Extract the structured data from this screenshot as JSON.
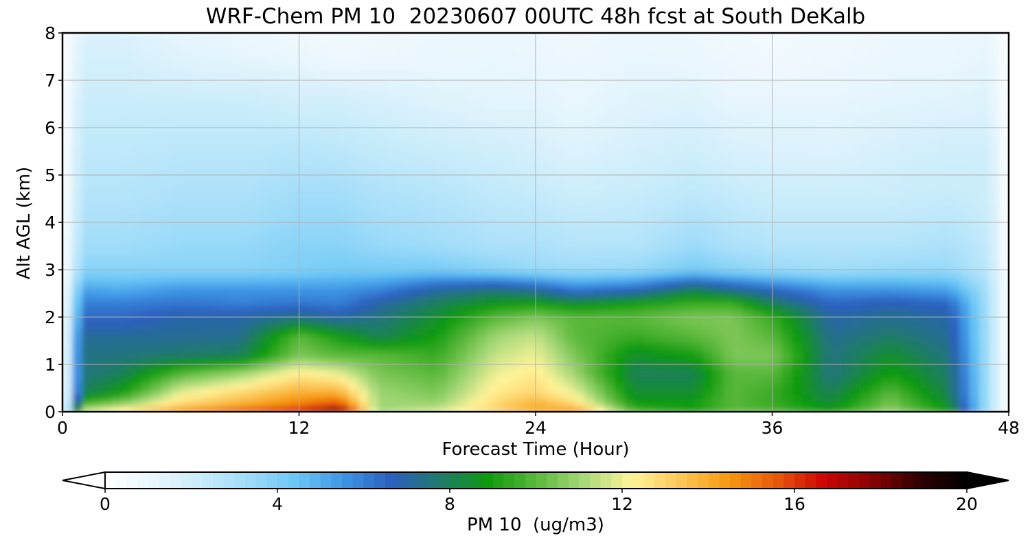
{
  "chart_data": {
    "type": "heatmap",
    "title": "WRF-Chem PM 10  20230607 00UTC 48h fcst at South DeKalb",
    "xlabel": "Forecast Time (Hour)",
    "ylabel": "Alt AGL (km)",
    "xlim": [
      0,
      48
    ],
    "ylim": [
      0,
      8
    ],
    "x_ticks": [
      "0",
      "12",
      "24",
      "36",
      "48"
    ],
    "y_ticks": [
      "0",
      "1",
      "2",
      "3",
      "4",
      "5",
      "6",
      "7",
      "8"
    ],
    "grid": true,
    "colorbar": {
      "label": "PM 10  (ug/m3)",
      "range": [
        0,
        20
      ],
      "ticks": [
        "0",
        "4",
        "8",
        "12",
        "16",
        "20"
      ],
      "colors": [
        "#ffffff",
        "#e8f6fd",
        "#c9ecfb",
        "#9fdcf9",
        "#69c6f6",
        "#3d95e4",
        "#2c5fbf",
        "#1f7a6a",
        "#0e9a0e",
        "#5ab83a",
        "#a8d97a",
        "#fff49a",
        "#fcc85a",
        "#f79a10",
        "#e85a0a",
        "#cc0505",
        "#8a0202",
        "#300000",
        "#000000"
      ],
      "extend": "both"
    },
    "x": [
      0,
      1,
      3,
      6,
      9,
      12,
      14,
      16,
      19,
      22,
      24,
      26,
      29,
      32,
      34,
      36,
      39,
      42,
      45,
      47,
      48
    ],
    "y": [
      0,
      0.15,
      0.4,
      0.8,
      1.2,
      1.6,
      2.0,
      2.3,
      2.6,
      3.0,
      3.5,
      4.5,
      5.5,
      6.5,
      7.5,
      8.0
    ],
    "z": [
      [
        0,
        12,
        13,
        15,
        16,
        17,
        19,
        11,
        12,
        13,
        14,
        15,
        10,
        9,
        10,
        10,
        9,
        11,
        9,
        3,
        0
      ],
      [
        0,
        10,
        11,
        13,
        14,
        15,
        16,
        11,
        11,
        13,
        14,
        13,
        9,
        9,
        10,
        9.5,
        8.5,
        10.5,
        8.5,
        3,
        0
      ],
      [
        0,
        8,
        9,
        12,
        13,
        14,
        14,
        11,
        10.5,
        12.5,
        13,
        12,
        8.5,
        8.5,
        10,
        9.5,
        8,
        10,
        8,
        3,
        0
      ],
      [
        0,
        7.5,
        8,
        10,
        11,
        12.5,
        12,
        10.5,
        10,
        12,
        12.5,
        11,
        8,
        8,
        10,
        10,
        7.5,
        9,
        7.8,
        3,
        0
      ],
      [
        0,
        7.5,
        7.5,
        7.8,
        8,
        10.5,
        10,
        10,
        9.5,
        11.5,
        12,
        10.5,
        8.5,
        9,
        10.5,
        10.5,
        7.5,
        8.5,
        7.5,
        3,
        0
      ],
      [
        0,
        7.2,
        7.2,
        7.2,
        7.3,
        10,
        9,
        8,
        9,
        11,
        11.5,
        10,
        9.5,
        10,
        10.5,
        10,
        7.3,
        7.8,
        7.2,
        3,
        0
      ],
      [
        0,
        6.5,
        6.5,
        7,
        7,
        7.5,
        7,
        7.5,
        8.5,
        10,
        10.5,
        10,
        10,
        10.5,
        10.5,
        9.5,
        7,
        7.3,
        7,
        3,
        0
      ],
      [
        0,
        6,
        6,
        6.2,
        6,
        6.2,
        6,
        7,
        8,
        8.8,
        9,
        8.5,
        9,
        9.5,
        9.5,
        8,
        6.5,
        6.8,
        6.5,
        3,
        0
      ],
      [
        0,
        5.2,
        5,
        5.5,
        5.5,
        5.5,
        5.5,
        5.8,
        7,
        7.5,
        7,
        6,
        6.5,
        8,
        7.2,
        6.5,
        5.5,
        5.5,
        5.2,
        3,
        0
      ],
      [
        0,
        3.8,
        3.8,
        3.8,
        3.8,
        4,
        4.2,
        4.2,
        4.2,
        3.8,
        3.5,
        3.4,
        3.5,
        4.2,
        3.8,
        3.5,
        3.3,
        3.5,
        3.5,
        2.5,
        0
      ],
      [
        0,
        3.3,
        3.3,
        3.5,
        3.5,
        3.8,
        3.8,
        3.5,
        3.3,
        3,
        3,
        2.8,
        2.8,
        3.4,
        3,
        2.8,
        2.8,
        2.8,
        3,
        2.4,
        0
      ],
      [
        0,
        2.8,
        2.8,
        3,
        3,
        3.3,
        3.3,
        3,
        2.8,
        2.5,
        2.4,
        2.2,
        2.3,
        2.6,
        2.4,
        2.2,
        2.2,
        2.2,
        2.3,
        2.1,
        0
      ],
      [
        0,
        2.5,
        2.5,
        2.6,
        2.6,
        2.7,
        2.6,
        2.4,
        2.2,
        2,
        1.8,
        1.5,
        1.8,
        2,
        1.7,
        1.6,
        1.5,
        1.8,
        2,
        2,
        0
      ],
      [
        0,
        2.2,
        2.2,
        2.2,
        2.2,
        2,
        2,
        1.8,
        1.5,
        1.3,
        1.3,
        1.1,
        1.4,
        1.5,
        1.2,
        1.2,
        1.2,
        1.3,
        1.4,
        1.5,
        0
      ],
      [
        0,
        1.8,
        1.8,
        1.4,
        1.2,
        1.0,
        0.8,
        0.9,
        1.0,
        1.1,
        1.0,
        0.9,
        1.1,
        1.0,
        0.8,
        0.7,
        0.8,
        1.0,
        1.0,
        1.2,
        0
      ],
      [
        0,
        1.6,
        1.6,
        1.2,
        1.0,
        0.8,
        0.7,
        0.8,
        0.9,
        1.0,
        0.9,
        0.8,
        1.0,
        0.9,
        0.7,
        0.6,
        0.7,
        0.9,
        0.9,
        1.1,
        0
      ]
    ]
  }
}
